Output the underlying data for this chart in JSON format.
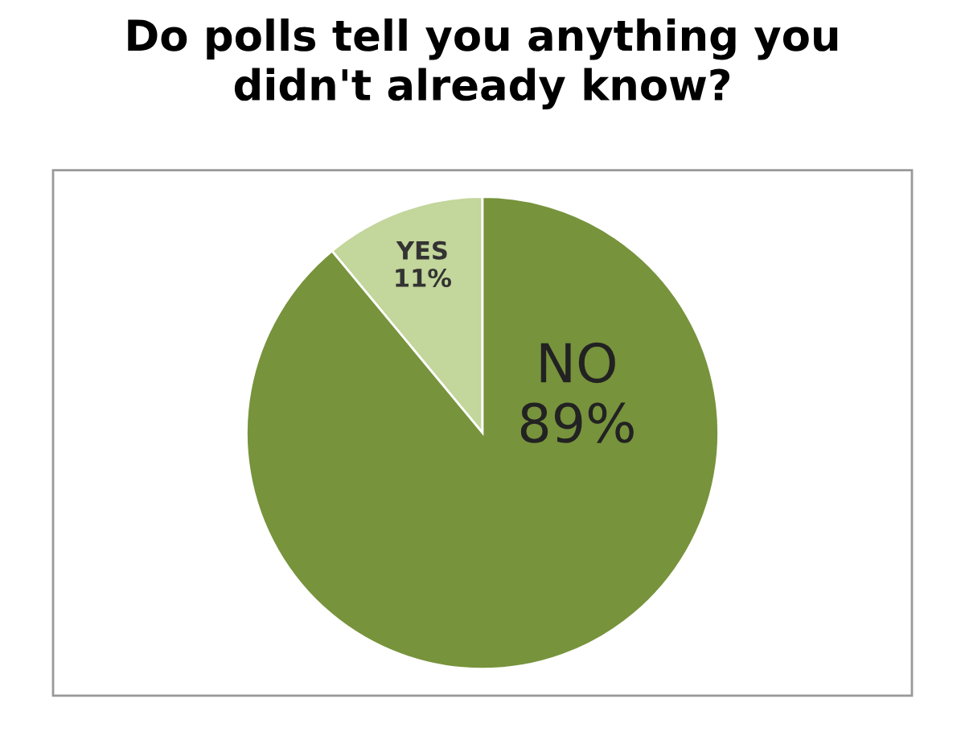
{
  "chart_data": {
    "type": "pie",
    "title": "Do polls tell you anything you\ndidn't already know?",
    "categories": [
      "YES",
      "NO"
    ],
    "values": [
      11,
      89
    ],
    "colors": [
      "#c3d69b",
      "#77933c"
    ],
    "value_labels": [
      "11%",
      "89%"
    ],
    "legend": false
  }
}
